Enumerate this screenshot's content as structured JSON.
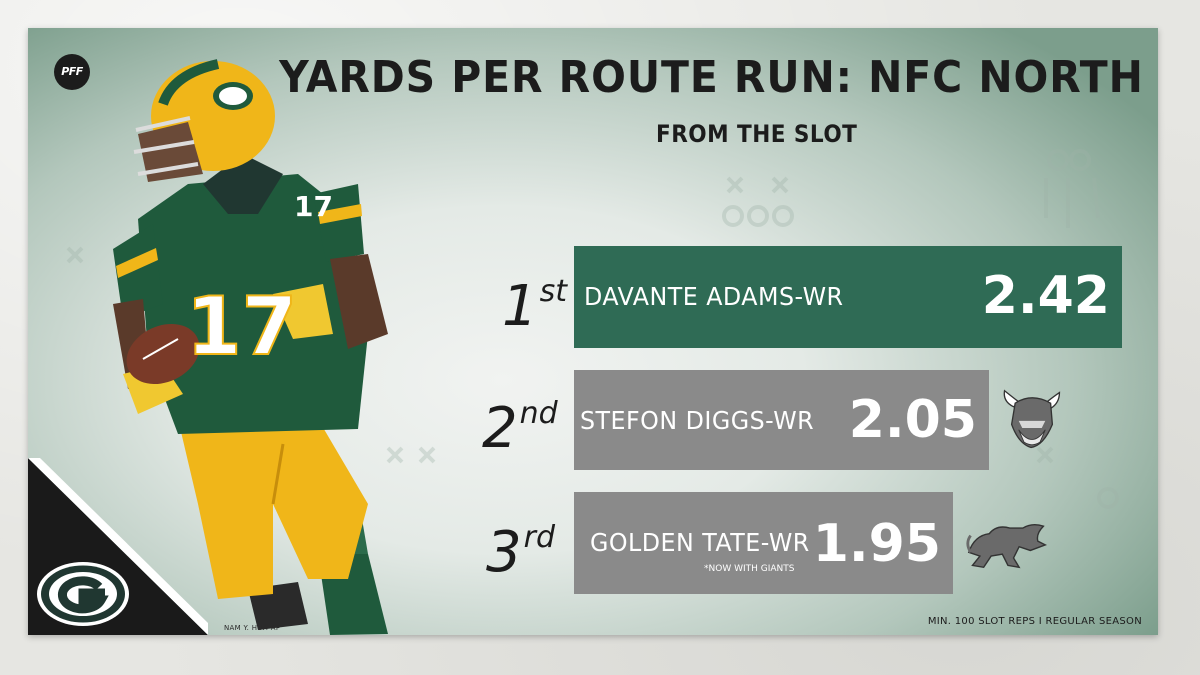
{
  "brand": {
    "pff_logo_text": "PFF",
    "accent_green": "#2f6b55",
    "bar_gray": "#8a8a8a",
    "packers_green": "#203731",
    "packers_gold": "#ffb612"
  },
  "chart_data": {
    "type": "bar",
    "title": "YARDS PER ROUTE RUN: NFC NORTH",
    "subtitle": "FROM THE SLOT",
    "categories": [
      "DAVANTE ADAMS-WR",
      "STEFON DIGGS-WR",
      "GOLDEN TATE-WR"
    ],
    "values": [
      2.42,
      2.05,
      1.95
    ],
    "value_labels": [
      "2.42",
      "2.05",
      "1.95"
    ],
    "ranks": [
      {
        "number": "1",
        "suffix": "st"
      },
      {
        "number": "2",
        "suffix": "nd"
      },
      {
        "number": "3",
        "suffix": "rd"
      }
    ],
    "team_icons": [
      "packers-icon",
      "vikings-icon",
      "lions-icon"
    ],
    "notes": [
      "",
      "",
      "*NOW WITH GIANTS"
    ],
    "bar_colors": [
      "#2f6b55",
      "#8a8a8a",
      "#8a8a8a"
    ],
    "orientation": "horizontal",
    "grid": false,
    "footnote": "MIN. 100 SLOT REPS I REGULAR SEASON"
  },
  "photo": {
    "credit": "NAM Y. HUH AP",
    "jersey_number": "17"
  }
}
